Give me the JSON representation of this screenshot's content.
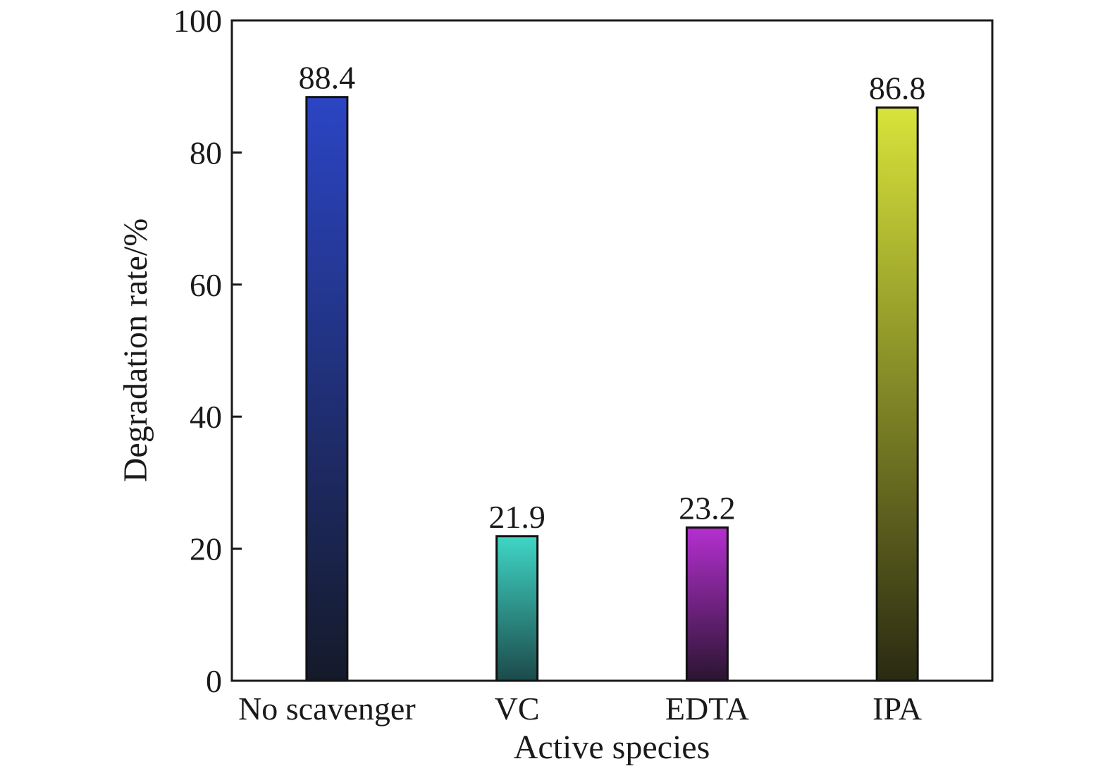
{
  "chart_data": {
    "type": "bar",
    "categories": [
      "No scavenger",
      "VC",
      "EDTA",
      "IPA"
    ],
    "values": [
      88.4,
      21.9,
      23.2,
      86.8
    ],
    "data_labels": [
      "88.4",
      "21.9",
      "23.2",
      "86.8"
    ],
    "xlabel": "Active species",
    "ylabel": "Degradation rate/%",
    "ylim": [
      0,
      100
    ],
    "yticks": [
      "0",
      "20",
      "40",
      "60",
      "80",
      "100"
    ],
    "grid": false,
    "bar_colors": [
      {
        "top": "#2b45c4",
        "bottom": "#151a2a"
      },
      {
        "top": "#3fd6c6",
        "bottom": "#1c4a4a"
      },
      {
        "top": "#b42fd0",
        "bottom": "#2a1530"
      },
      {
        "top": "#d8e33a",
        "bottom": "#2a2a12"
      }
    ]
  }
}
